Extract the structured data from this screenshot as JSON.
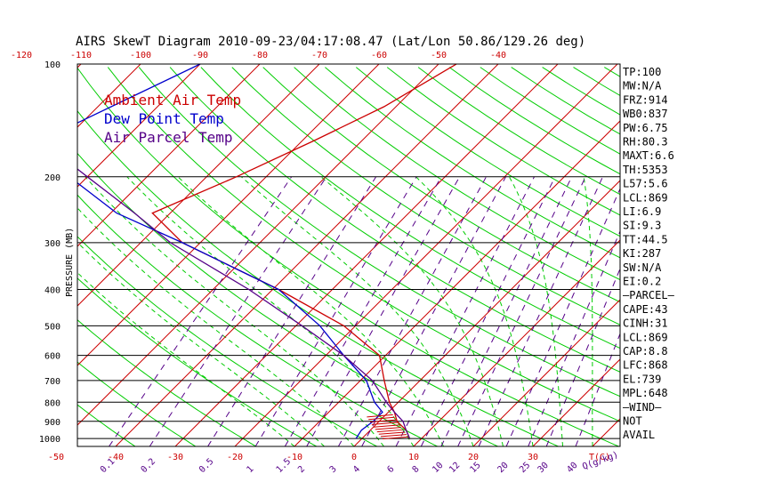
{
  "chart_data": {
    "type": "line",
    "title": "AIRS SkewT Diagram 2010-09-23/04:17:08.47 (Lat/Lon 50.86/129.26 deg)",
    "ylabel": "PRESSURE (MB)",
    "xlabel": "T(C)",
    "mixing_ratio_unit": "Q(g/kg)",
    "pressure_ticks": [
      100,
      200,
      300,
      400,
      500,
      600,
      700,
      800,
      900,
      1000
    ],
    "bottom_temp_ticks": [
      -50,
      -40,
      -30,
      -20,
      -10,
      0,
      10,
      20,
      30
    ],
    "top_temp_ticks": [
      -120,
      -110,
      -100,
      -90,
      -80,
      -70,
      -60,
      -50,
      -40
    ],
    "mixing_ratio_ticks": [
      "0.1",
      "0.2",
      "0.5",
      "1",
      "1.5",
      "2",
      "3",
      "4",
      "6",
      "8",
      "10",
      "12",
      "15",
      "20",
      "25",
      "30",
      "40"
    ],
    "legend": [
      "Ambient Air Temp",
      "Dew Point Temp",
      "Air Parcel Temp"
    ],
    "colors": {
      "ambient": "#cc0000",
      "dewpoint": "#0000cc",
      "parcel": "#550088",
      "dry_adiabat": "#00cc00",
      "isotherm": "#cc0000",
      "mixing_ratio": "#550088",
      "isobar": "#000000",
      "axis_text": "#cc0000",
      "mixing_text": "#550088"
    },
    "series": [
      {
        "name": "Ambient Air Temp",
        "points": [
          [
            100,
            -47
          ],
          [
            130,
            -52
          ],
          [
            160,
            -58
          ],
          [
            200,
            -65
          ],
          [
            250,
            -73
          ],
          [
            300,
            -63
          ],
          [
            400,
            -39
          ],
          [
            500,
            -22
          ],
          [
            600,
            -11
          ],
          [
            700,
            -6
          ],
          [
            800,
            -1.5
          ],
          [
            850,
            1
          ],
          [
            900,
            3
          ],
          [
            950,
            6
          ],
          [
            1000,
            8
          ]
        ]
      },
      {
        "name": "Dew Point Temp",
        "points": [
          [
            100,
            -90
          ],
          [
            150,
            -102
          ],
          [
            200,
            -93
          ],
          [
            250,
            -79
          ],
          [
            300,
            -63
          ],
          [
            400,
            -39
          ],
          [
            500,
            -26
          ],
          [
            600,
            -17
          ],
          [
            700,
            -9
          ],
          [
            800,
            -4
          ],
          [
            850,
            -1
          ],
          [
            900,
            -1
          ],
          [
            950,
            -1.5
          ],
          [
            1000,
            -1
          ]
        ]
      },
      {
        "name": "Air Parcel Temp",
        "points": [
          [
            100,
            -132
          ],
          [
            150,
            -108
          ],
          [
            200,
            -90
          ],
          [
            250,
            -76
          ],
          [
            300,
            -65
          ],
          [
            400,
            -44
          ],
          [
            500,
            -29
          ],
          [
            600,
            -17
          ],
          [
            700,
            -8
          ],
          [
            800,
            -2
          ],
          [
            850,
            1
          ],
          [
            900,
            4
          ],
          [
            950,
            6
          ],
          [
            1000,
            8
          ]
        ]
      }
    ],
    "indices": [
      "TP:100",
      "MW:N/A",
      "FRZ:914",
      "WB0:837",
      "PW:6.75",
      "RH:80.3",
      "MAXT:6.6",
      "TH:5353",
      "L57:5.6",
      "LCL:869",
      "LI:6.9",
      "SI:9.3",
      "TT:44.5",
      "KI:287",
      "SW:N/A",
      "EI:0.2",
      "—PARCEL—",
      "CAPE:43",
      "CINH:31",
      "LCL:869",
      "CAP:8.8",
      "LFC:868",
      "EL:739",
      "MPL:648",
      "—WIND—",
      "NOT",
      "AVAIL"
    ]
  }
}
